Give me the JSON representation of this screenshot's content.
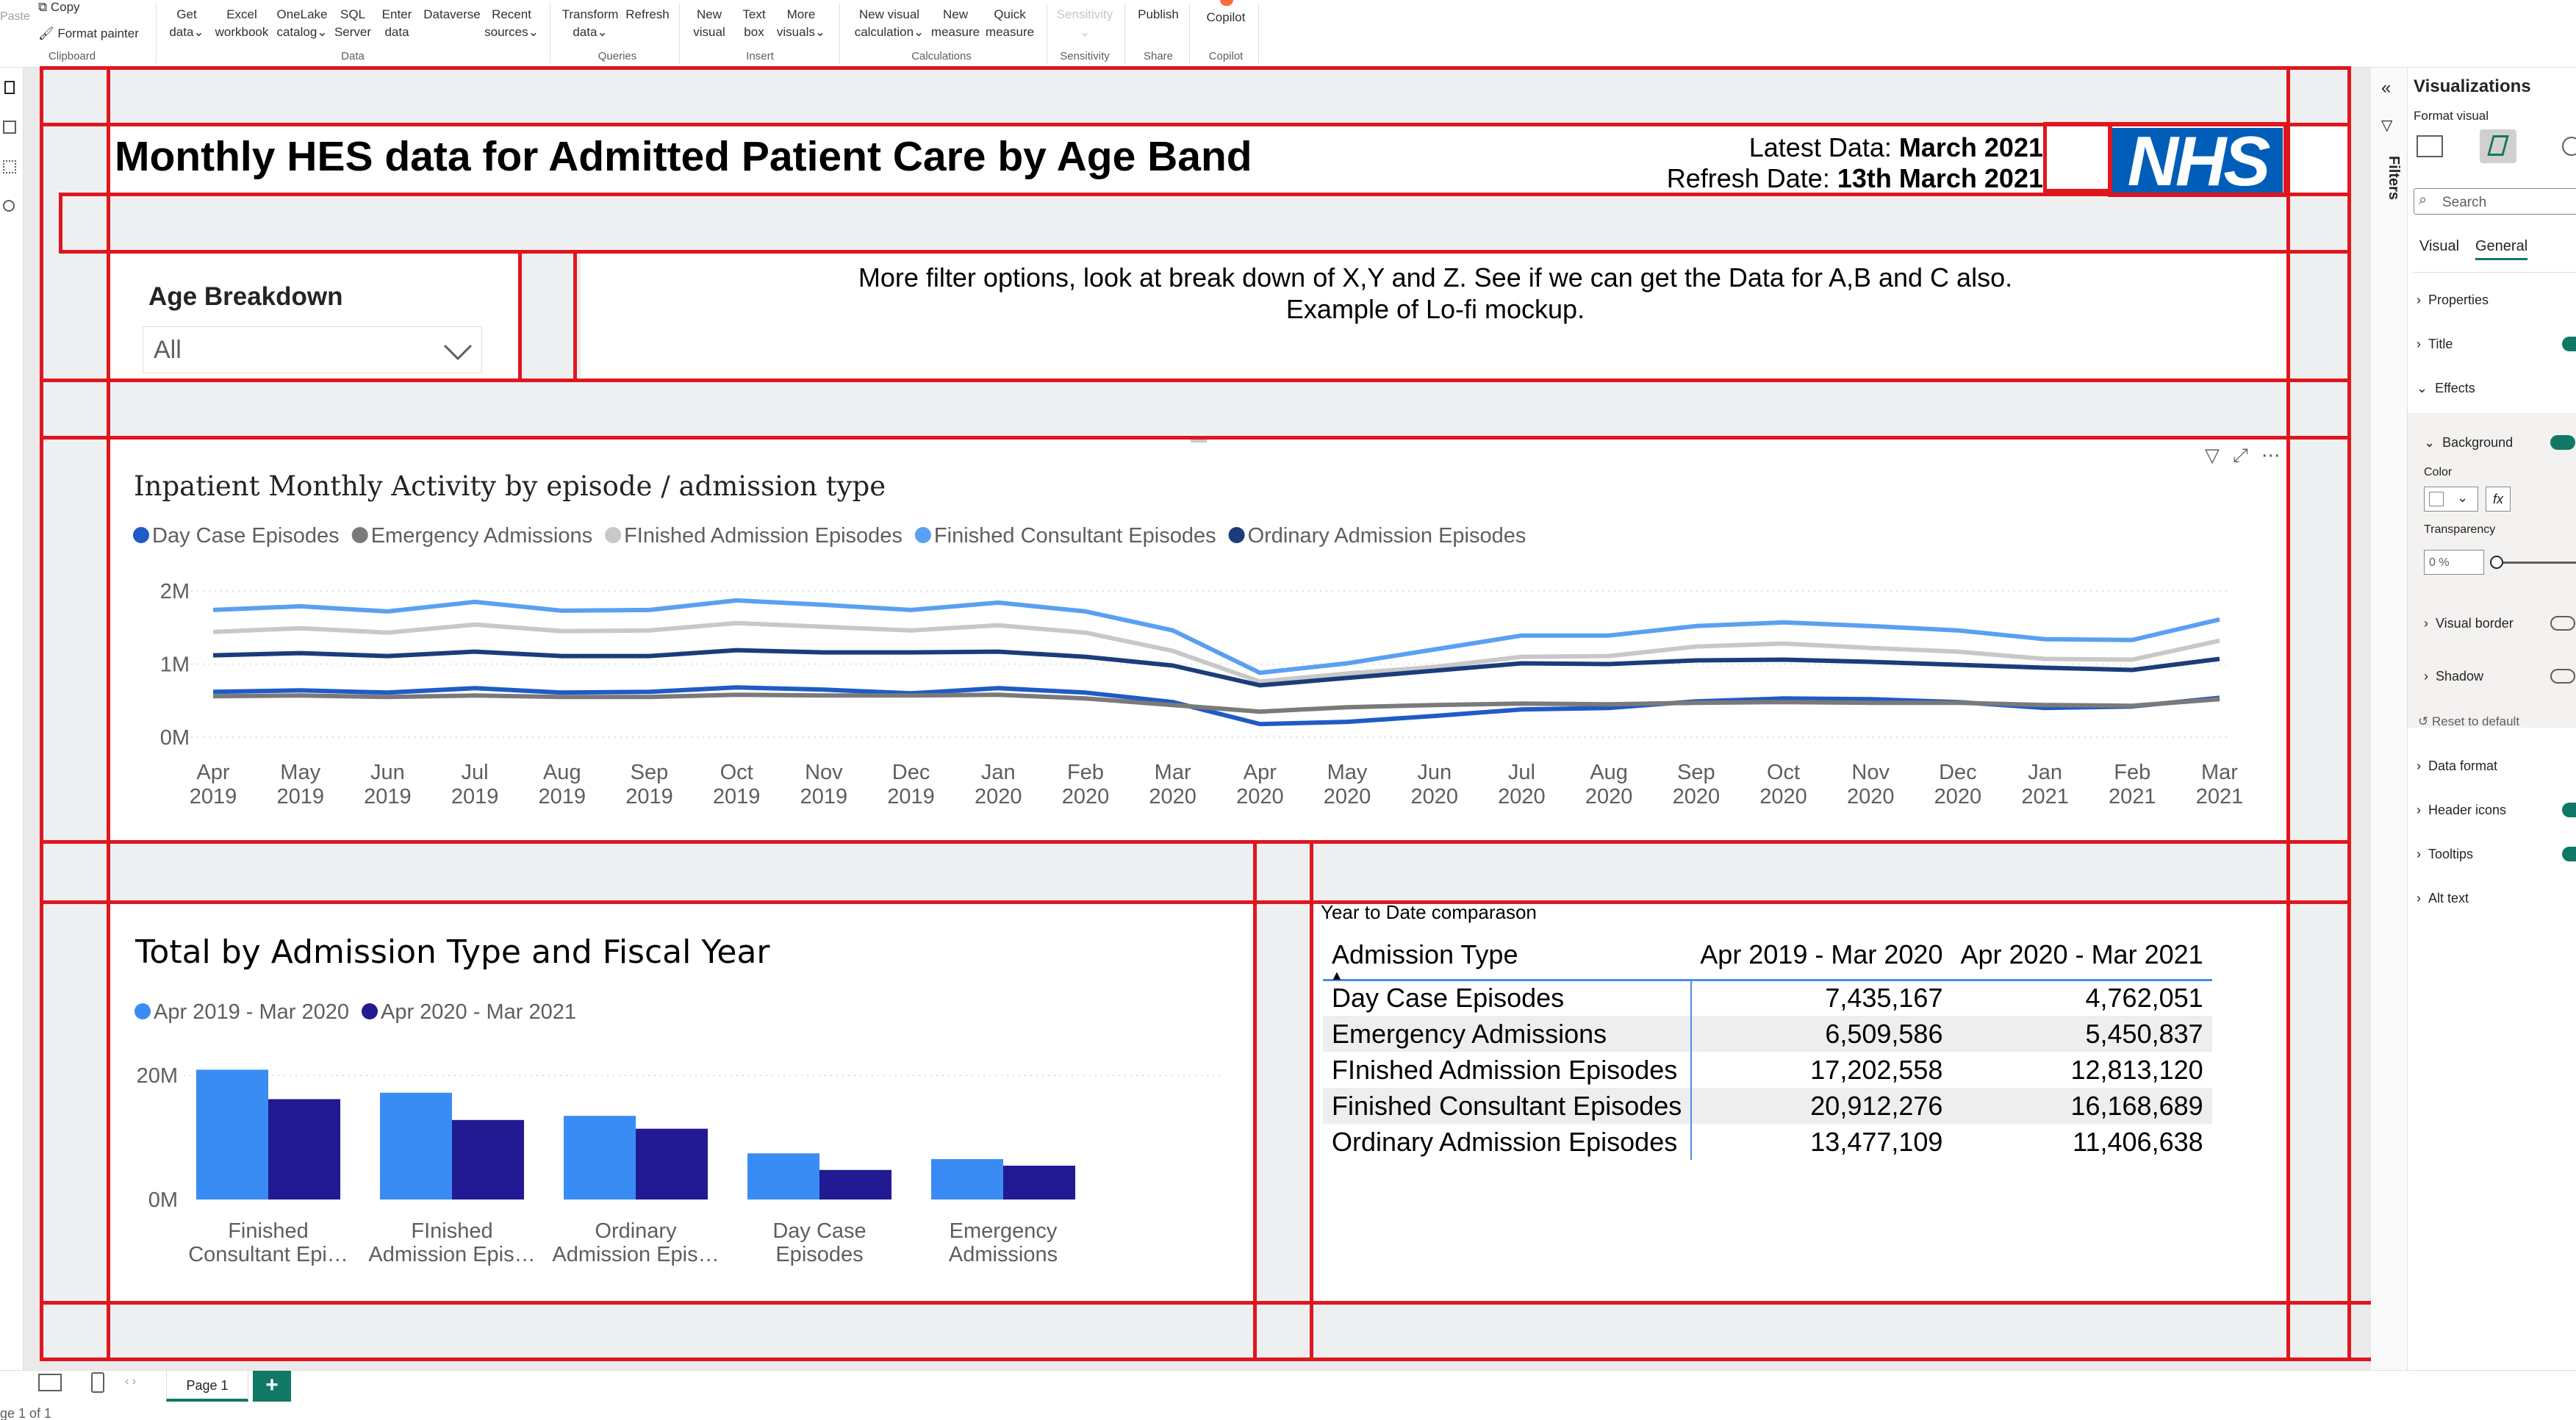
{
  "ribbon": {
    "groups": [
      "Clipboard",
      "Data",
      "Queries",
      "Insert",
      "Calculations",
      "Sensitivity",
      "Share",
      "Copilot"
    ],
    "clipboard": {
      "paste": "Paste",
      "copy": "Copy",
      "format_painter": "Format painter"
    },
    "buttons": [
      {
        "line1": "Get",
        "line2": "data"
      },
      {
        "line1": "Excel",
        "line2": "workbook"
      },
      {
        "line1": "OneLake",
        "line2": "catalog"
      },
      {
        "line1": "SQL",
        "line2": "Server"
      },
      {
        "line1": "Enter",
        "line2": "data"
      },
      {
        "line1": "Dataverse",
        "line2": ""
      },
      {
        "line1": "Recent",
        "line2": "sources"
      },
      {
        "line1": "Transform",
        "line2": "data"
      },
      {
        "line1": "Refresh",
        "line2": ""
      },
      {
        "line1": "New",
        "line2": "visual"
      },
      {
        "line1": "Text",
        "line2": "box"
      },
      {
        "line1": "More",
        "line2": "visuals"
      },
      {
        "line1": "New visual",
        "line2": "calculation"
      },
      {
        "line1": "New",
        "line2": "measure"
      },
      {
        "line1": "Quick",
        "line2": "measure"
      },
      {
        "line1": "Sensitivity",
        "line2": ""
      },
      {
        "line1": "Publish",
        "line2": ""
      },
      {
        "line1": "Copilot",
        "line2": ""
      }
    ]
  },
  "report": {
    "title": "Monthly HES data for Admitted Patient Care by Age Band",
    "latest_label": "Latest Data: ",
    "latest_value": "March 2021",
    "refresh_label": "Refresh Date: ",
    "refresh_value": "13th March 2021",
    "logo": "NHS",
    "age_breakdown_label": "Age Breakdown",
    "age_breakdown_value": "All",
    "note_line1": "More filter options, look at break down of X,Y and Z. See if we can get the Data for A,B and C also.",
    "note_line2": "Example of Lo-fi mockup."
  },
  "line_chart": {
    "title": "Inpatient Monthly Activity by episode / admission type"
  },
  "chart_data": [
    {
      "type": "line",
      "title": "Inpatient Monthly Activity by episode / admission type",
      "x": [
        "Apr 2019",
        "May 2019",
        "Jun 2019",
        "Jul 2019",
        "Aug 2019",
        "Sep 2019",
        "Oct 2019",
        "Nov 2019",
        "Dec 2019",
        "Jan 2020",
        "Feb 2020",
        "Mar 2020",
        "Apr 2020",
        "May 2020",
        "Jun 2020",
        "Jul 2020",
        "Aug 2020",
        "Sep 2020",
        "Oct 2020",
        "Nov 2020",
        "Dec 2020",
        "Jan 2021",
        "Feb 2021",
        "Mar 2021"
      ],
      "yticks": [
        "2M",
        "1M",
        "0M"
      ],
      "ylim": [
        0,
        2000000
      ],
      "legend": "top-left",
      "grid": true,
      "series": [
        {
          "name": "Day Case Episodes",
          "color": "#1f5bc4",
          "values": [
            620000,
            640000,
            610000,
            670000,
            610000,
            620000,
            680000,
            650000,
            600000,
            670000,
            610000,
            480000,
            180000,
            210000,
            290000,
            380000,
            400000,
            490000,
            530000,
            520000,
            480000,
            400000,
            420000,
            540000
          ]
        },
        {
          "name": "Emergency Admissions",
          "color": "#7a7a7a",
          "values": [
            560000,
            570000,
            550000,
            570000,
            550000,
            550000,
            580000,
            570000,
            570000,
            580000,
            530000,
            440000,
            350000,
            410000,
            440000,
            460000,
            450000,
            470000,
            480000,
            470000,
            470000,
            440000,
            430000,
            520000
          ]
        },
        {
          "name": "FInished Admission Episodes",
          "color": "#c8c8c8",
          "values": [
            1440000,
            1490000,
            1430000,
            1540000,
            1450000,
            1460000,
            1560000,
            1510000,
            1460000,
            1530000,
            1430000,
            1180000,
            760000,
            870000,
            960000,
            1100000,
            1110000,
            1240000,
            1280000,
            1220000,
            1170000,
            1070000,
            1060000,
            1320000
          ]
        },
        {
          "name": "Finished Consultant Episodes",
          "color": "#5aa0f2",
          "values": [
            1740000,
            1790000,
            1720000,
            1850000,
            1730000,
            1740000,
            1870000,
            1810000,
            1740000,
            1840000,
            1720000,
            1460000,
            880000,
            1010000,
            1200000,
            1390000,
            1390000,
            1520000,
            1570000,
            1520000,
            1460000,
            1340000,
            1330000,
            1610000
          ]
        },
        {
          "name": "Ordinary Admission Episodes",
          "color": "#1a3d7a",
          "values": [
            1120000,
            1150000,
            1110000,
            1170000,
            1110000,
            1110000,
            1190000,
            1160000,
            1160000,
            1170000,
            1100000,
            980000,
            710000,
            810000,
            910000,
            1010000,
            1000000,
            1050000,
            1060000,
            1030000,
            990000,
            950000,
            920000,
            1070000
          ]
        }
      ]
    },
    {
      "type": "bar",
      "title": "Total by Admission Type and Fiscal Year",
      "categories": [
        "Finished Consultant Epi…",
        "FInished Admission Epis…",
        "Ordinary Admission Epis…",
        "Day Case Episodes",
        "Emergency Admissions"
      ],
      "category_lines": [
        [
          "Finished",
          "Consultant Epi…"
        ],
        [
          "FInished",
          "Admission Epis…"
        ],
        [
          "Ordinary",
          "Admission Epis…"
        ],
        [
          "Day Case",
          "Episodes"
        ],
        [
          "Emergency",
          "Admissions"
        ]
      ],
      "yticks": [
        "20M",
        "0M"
      ],
      "ylim": [
        0,
        27000000
      ],
      "legend": "top-left",
      "grid": true,
      "series": [
        {
          "name": "Apr 2019 - Mar 2020",
          "color": "#3a8cf5",
          "values": [
            20912276,
            17202558,
            13477109,
            7435167,
            6509586
          ]
        },
        {
          "name": "Apr 2020 - Mar 2021",
          "color": "#211a93",
          "values": [
            16168689,
            12813120,
            11406638,
            4762051,
            5450837
          ]
        }
      ]
    },
    {
      "type": "table",
      "title": "Year to Date comparason",
      "columns": [
        "Admission Type",
        "Apr 2019 - Mar 2020",
        "Apr 2020 - Mar 2021"
      ],
      "rows": [
        [
          "Day Case Episodes",
          "7,435,167",
          "4,762,051"
        ],
        [
          "Emergency Admissions",
          "6,509,586",
          "5,450,837"
        ],
        [
          "FInished Admission Episodes",
          "17,202,558",
          "12,813,120"
        ],
        [
          "Finished Consultant Episodes",
          "20,912,276",
          "16,168,689"
        ],
        [
          "Ordinary Admission Episodes",
          "13,477,109",
          "11,406,638"
        ]
      ]
    }
  ],
  "right_pane": {
    "filters_label": "Filters",
    "title": "Visualizations",
    "subtitle": "Format visual",
    "search_placeholder": "Search",
    "tab_visual": "Visual",
    "tab_general": "General",
    "properties": "Properties",
    "title_item": "Title",
    "effects": "Effects",
    "background": "Background",
    "color": "Color",
    "transparency": "Transparency",
    "transparency_value": "0 %",
    "visual_border": "Visual border",
    "shadow": "Shadow",
    "reset": "Reset to default",
    "data_format": "Data format",
    "header_icons": "Header icons",
    "tooltips": "Tooltips",
    "alt_text": "Alt text",
    "on": "On",
    "fx": "fx"
  },
  "bottom": {
    "page_tab": "Page 1",
    "add_page": "+",
    "page_status": "ge 1 of 1"
  }
}
